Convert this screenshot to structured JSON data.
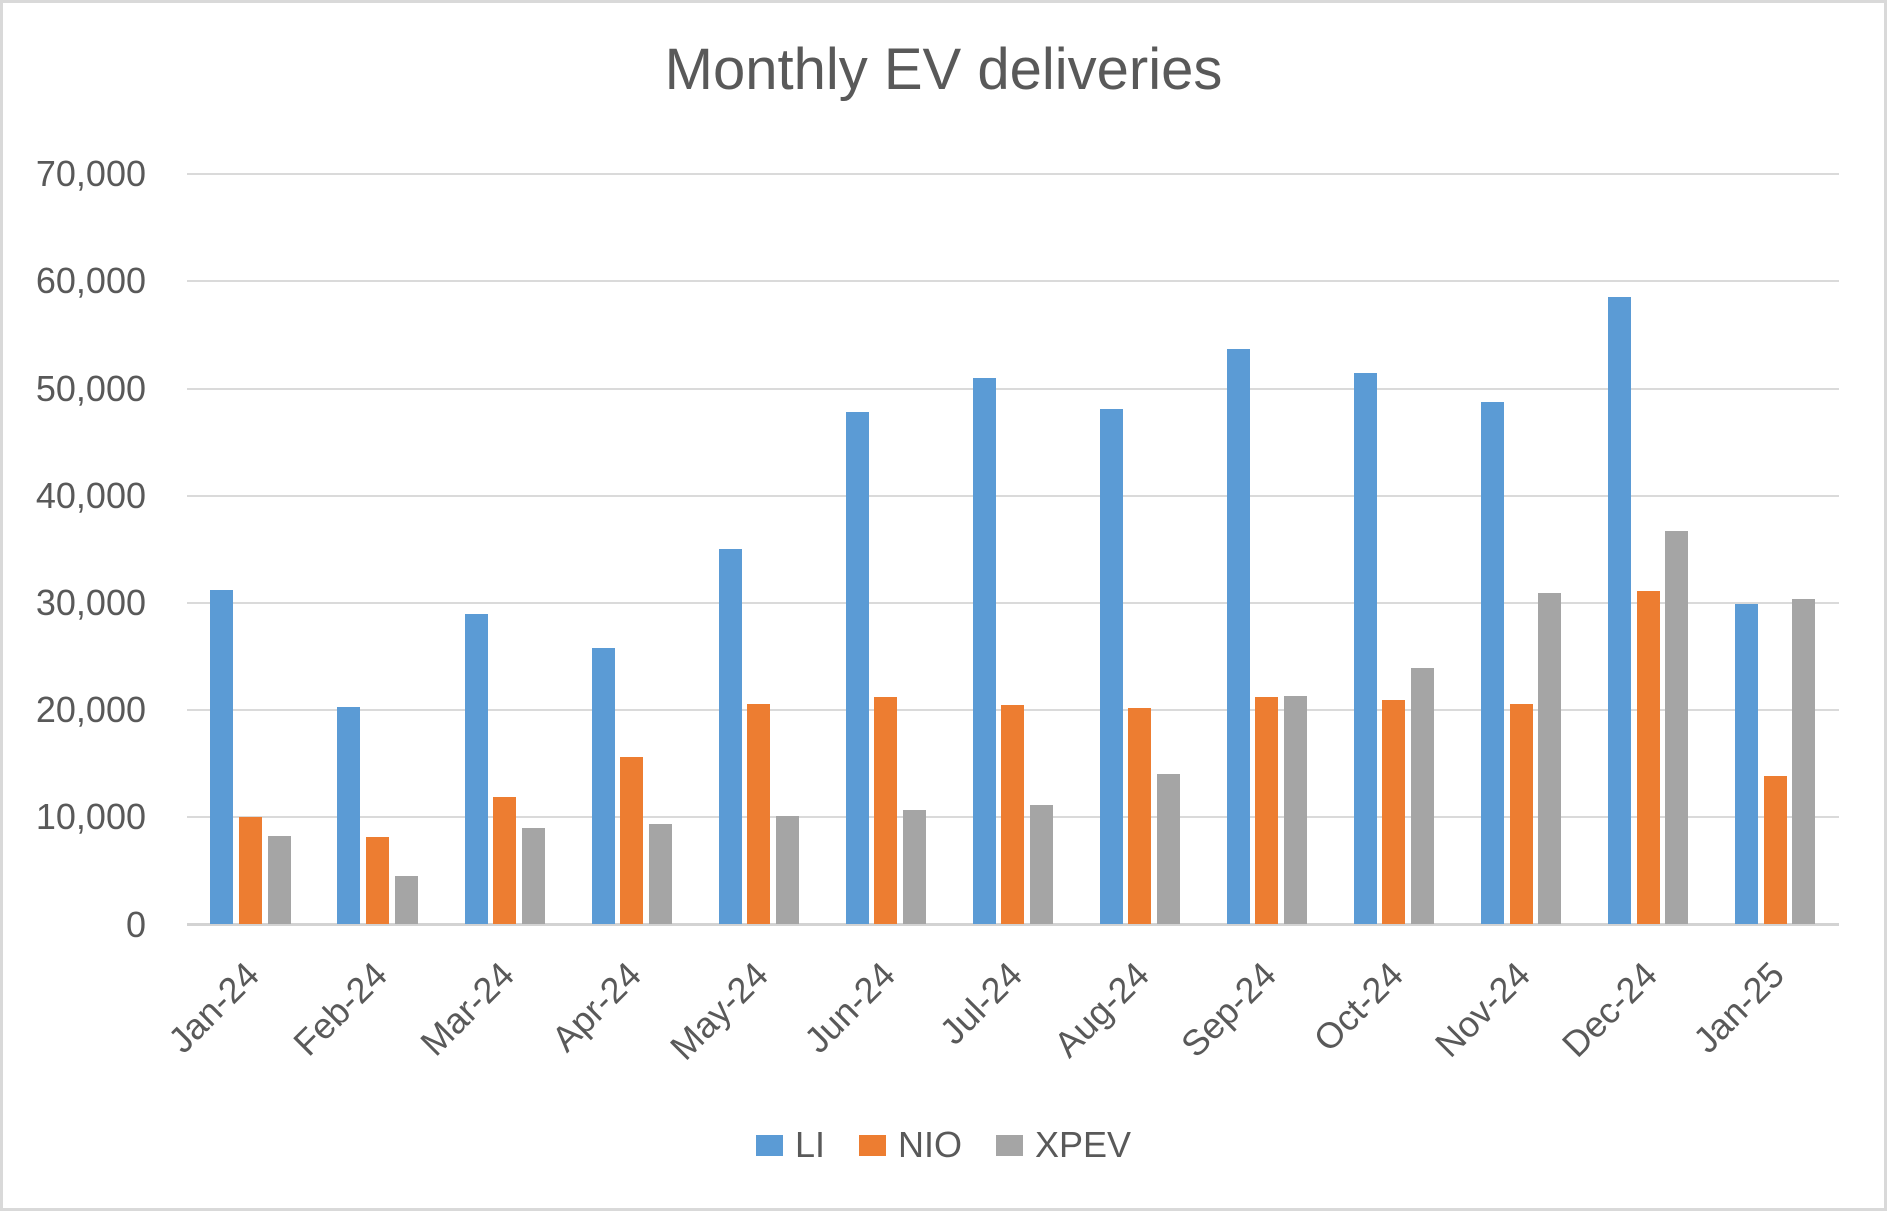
{
  "page": {
    "background_color": "#FFFFFF",
    "border_color": "#D9D9D9",
    "text_color": "#595959"
  },
  "chart_data": {
    "type": "bar",
    "title": "Monthly EV deliveries",
    "categories": [
      "Jan-24",
      "Feb-24",
      "Mar-24",
      "Apr-24",
      "May-24",
      "Jun-24",
      "Jul-24",
      "Aug-24",
      "Sep-24",
      "Oct-24",
      "Nov-24",
      "Dec-24",
      "Jan-25"
    ],
    "series": [
      {
        "name": "LI",
        "color": "#5B9BD5",
        "values": [
          31165,
          20251,
          28984,
          25787,
          35020,
          47774,
          51000,
          48122,
          53709,
          51443,
          48740,
          58513,
          29927
        ]
      },
      {
        "name": "NIO",
        "color": "#ED7D31",
        "values": [
          10055,
          8132,
          11866,
          15620,
          20544,
          21209,
          20498,
          20176,
          21181,
          20976,
          20575,
          31138,
          13863
        ]
      },
      {
        "name": "XPEV",
        "color": "#A5A5A5",
        "values": [
          8250,
          4545,
          9026,
          9393,
          10146,
          10668,
          11145,
          14036,
          21352,
          23917,
          30895,
          36695,
          30350
        ]
      }
    ],
    "xlabel": "",
    "ylabel": "",
    "ylim": [
      0,
      70000
    ],
    "y_tick_interval": 10000,
    "y_tick_labels": [
      "0",
      "10,000",
      "20,000",
      "30,000",
      "40,000",
      "50,000",
      "60,000",
      "70,000"
    ],
    "x_label_rotation_deg": -45,
    "grid": "horizontal",
    "gridline_color": "#DADADA",
    "legend_position": "bottom"
  }
}
